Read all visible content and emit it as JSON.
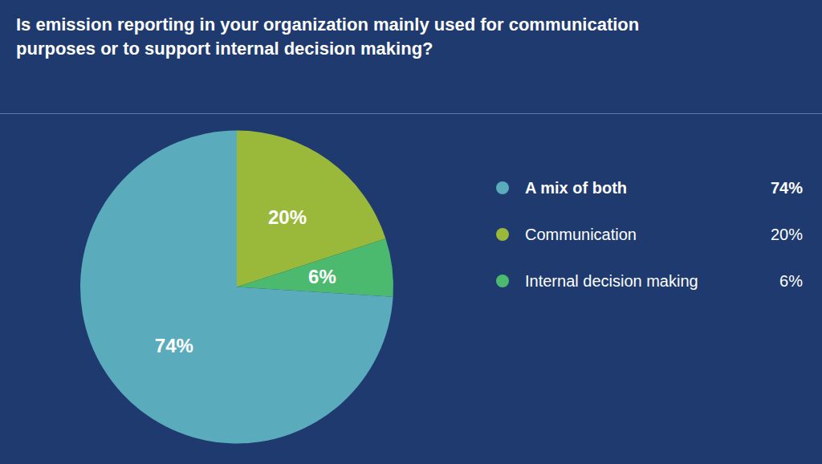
{
  "chart_data": {
    "type": "pie",
    "title": "Is emission reporting in your organization mainly used for communication\npurposes or to support internal decision making?",
    "categories": [
      "Communication",
      "Internal decision making",
      "A mix of both"
    ],
    "values": [
      20,
      6,
      74
    ],
    "value_labels": [
      "20%",
      "6%",
      "74%"
    ],
    "colors": [
      "#9ab83a",
      "#4cba6e",
      "#5aabbc"
    ],
    "data_labels": true,
    "legend": "right"
  }
}
